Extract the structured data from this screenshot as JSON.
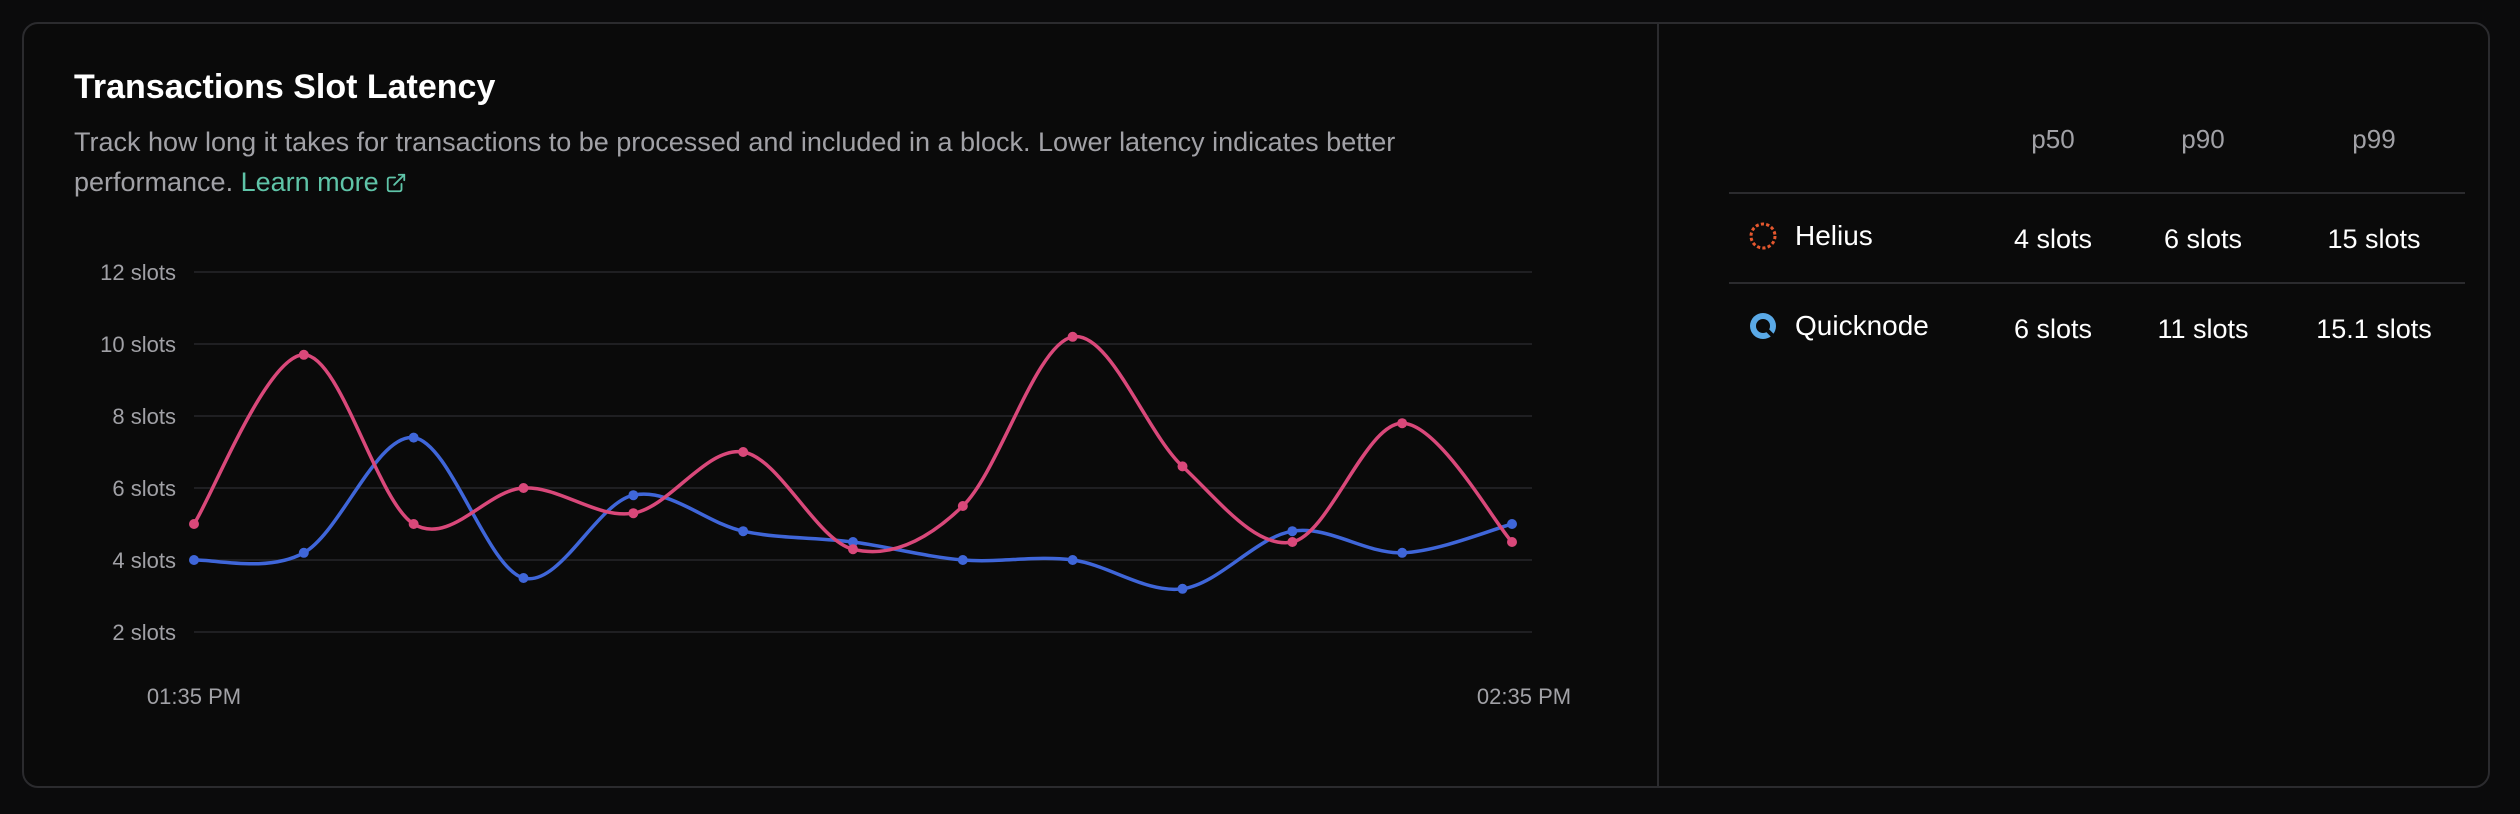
{
  "header": {
    "title": "Transactions Slot Latency",
    "description": "Track how long it takes for transactions to be processed and included in a block. Lower latency indicates better performance.",
    "learn_more": "Learn more"
  },
  "colors": {
    "helius": "#d9487a",
    "quicknode": "#3f66d9",
    "link": "#5fc4a8"
  },
  "chart_data": {
    "type": "line",
    "x": [
      "01:35 PM",
      "",
      "",
      "",
      "",
      "",
      "",
      "",
      "",
      "",
      "",
      "",
      "02:35 PM"
    ],
    "x_tick_labels": [
      "01:35 PM",
      "02:35 PM"
    ],
    "y_ticks": [
      "2 slots",
      "4 slots",
      "6 slots",
      "8 slots",
      "10 slots",
      "12 slots"
    ],
    "ylim": [
      2,
      12
    ],
    "grid": true,
    "legend": "none",
    "series": [
      {
        "name": "Helius",
        "color": "#d9487a",
        "values": [
          5.0,
          9.7,
          5.0,
          6.0,
          5.3,
          7.0,
          4.3,
          5.5,
          10.2,
          6.6,
          4.5,
          7.8,
          4.5
        ]
      },
      {
        "name": "Quicknode",
        "color": "#3f66d9",
        "values": [
          4.0,
          4.2,
          7.4,
          3.5,
          5.8,
          4.8,
          4.5,
          4.0,
          4.0,
          3.2,
          4.8,
          4.2,
          5.0
        ]
      }
    ]
  },
  "table": {
    "columns": [
      "p50",
      "p90",
      "p99"
    ],
    "rows": [
      {
        "provider": "Helius",
        "icon": "helius-icon",
        "p50": "4 slots",
        "p90": "6 slots",
        "p99": "15 slots"
      },
      {
        "provider": "Quicknode",
        "icon": "quicknode-icon",
        "p50": "6 slots",
        "p90": "11 slots",
        "p99": "15.1 slots"
      }
    ]
  }
}
